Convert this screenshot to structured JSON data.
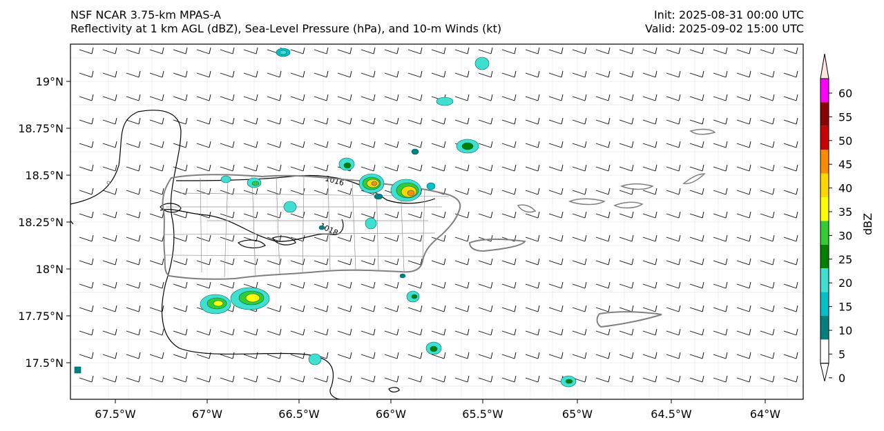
{
  "header": {
    "left_line1": "NSF NCAR 3.75-km MPAS-A",
    "left_line2": "Reflectivity at 1 km AGL (dBZ), Sea-Level Pressure (hPa), and 10-m Winds (kt)",
    "right_line1": "Init: 2025-08-31 00:00 UTC",
    "right_line2": "Valid: 2025-09-02 15:00 UTC"
  },
  "map": {
    "lon_ticks": [
      "67.5°W",
      "67°W",
      "66.5°W",
      "66°W",
      "65.5°W",
      "65°W",
      "64.5°W",
      "64°W"
    ],
    "lat_ticks": [
      "19°N",
      "18.75°N",
      "18.5°N",
      "18.25°N",
      "18°N",
      "17.75°N",
      "17.5°N"
    ],
    "isobar_labels": [
      "1016",
      "1018"
    ],
    "colors": {
      "coastline": "#808080",
      "isobar": "#000000",
      "barb": "#000000"
    }
  },
  "colorbar": {
    "label": "dBZ",
    "ticks": [
      "0",
      "5",
      "10",
      "15",
      "20",
      "25",
      "30",
      "35",
      "40",
      "45",
      "50",
      "55",
      "60"
    ],
    "colors": [
      "#ffffff",
      "#00807f",
      "#00c0c8",
      "#40e0d0",
      "#008000",
      "#32cd32",
      "#ffff00",
      "#ffd700",
      "#ff8c00",
      "#cc0000",
      "#8b0000",
      "#ff00ff",
      "#ffe4e1"
    ]
  }
}
